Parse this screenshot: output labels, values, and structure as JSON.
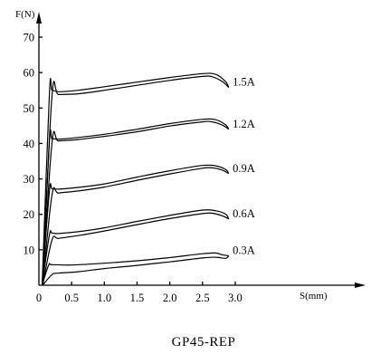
{
  "chart_data": {
    "type": "line",
    "title": "GP45-REP",
    "xlabel": "S(mm)",
    "ylabel": "F(N)",
    "xlim": [
      0,
      3.25
    ],
    "ylim": [
      0,
      73
    ],
    "x_ticks": [
      "0",
      "0.5",
      "1.0",
      "1.5",
      "2.0",
      "2.5",
      "3.0"
    ],
    "y_ticks": [
      "10",
      "20",
      "30",
      "40",
      "50",
      "60",
      "70"
    ],
    "grid": false,
    "series": [
      {
        "name": "1.5A",
        "upper": [
          [
            0.05,
            0
          ],
          [
            0.16,
            54
          ],
          [
            0.2,
            55
          ],
          [
            0.3,
            54.6
          ],
          [
            0.6,
            55
          ],
          [
            1.0,
            56
          ],
          [
            1.5,
            57.3
          ],
          [
            2.0,
            58.6
          ],
          [
            2.5,
            59.7
          ],
          [
            2.7,
            59.5
          ],
          [
            2.85,
            57.5
          ],
          [
            2.9,
            55.8
          ]
        ],
        "lower": [
          [
            0.06,
            0
          ],
          [
            0.2,
            53.5
          ],
          [
            0.3,
            53.8
          ],
          [
            0.6,
            54
          ],
          [
            1.0,
            55
          ],
          [
            1.5,
            56.4
          ],
          [
            2.0,
            57.8
          ],
          [
            2.5,
            58.9
          ],
          [
            2.65,
            58.8
          ],
          [
            2.8,
            57.5
          ],
          [
            2.9,
            55.8
          ]
        ]
      },
      {
        "name": "1.2A",
        "upper": [
          [
            0.05,
            0
          ],
          [
            0.16,
            40.6
          ],
          [
            0.2,
            41.3
          ],
          [
            0.3,
            41.2
          ],
          [
            0.6,
            41.7
          ],
          [
            1.0,
            42.6
          ],
          [
            1.5,
            44.0
          ],
          [
            2.0,
            45.6
          ],
          [
            2.5,
            46.8
          ],
          [
            2.7,
            46.7
          ],
          [
            2.85,
            45.3
          ],
          [
            2.9,
            44
          ]
        ],
        "lower": [
          [
            0.06,
            0
          ],
          [
            0.2,
            40.3
          ],
          [
            0.3,
            40.7
          ],
          [
            0.6,
            41.1
          ],
          [
            1.0,
            42
          ],
          [
            1.5,
            43.3
          ],
          [
            2.0,
            44.9
          ],
          [
            2.5,
            46.1
          ],
          [
            2.65,
            46.1
          ],
          [
            2.8,
            45.2
          ],
          [
            2.9,
            44
          ]
        ]
      },
      {
        "name": "0.9A",
        "upper": [
          [
            0.05,
            0
          ],
          [
            0.16,
            26.5
          ],
          [
            0.2,
            27.2
          ],
          [
            0.3,
            27.1
          ],
          [
            0.6,
            27.6
          ],
          [
            1.0,
            28.6
          ],
          [
            1.5,
            30.5
          ],
          [
            2.0,
            32.3
          ],
          [
            2.5,
            33.8
          ],
          [
            2.7,
            33.7
          ],
          [
            2.85,
            32.7
          ],
          [
            2.9,
            31.5
          ]
        ],
        "lower": [
          [
            0.06,
            0
          ],
          [
            0.2,
            25.5
          ],
          [
            0.3,
            26
          ],
          [
            0.6,
            26.6
          ],
          [
            1.0,
            27.7
          ],
          [
            1.5,
            29.6
          ],
          [
            2.0,
            31.4
          ],
          [
            2.5,
            33.0
          ],
          [
            2.65,
            33.1
          ],
          [
            2.8,
            32.5
          ],
          [
            2.9,
            31.5
          ]
        ]
      },
      {
        "name": "0.6A",
        "upper": [
          [
            0.05,
            0
          ],
          [
            0.16,
            14.2
          ],
          [
            0.2,
            14.7
          ],
          [
            0.3,
            14.6
          ],
          [
            0.6,
            15.1
          ],
          [
            1.0,
            16.2
          ],
          [
            1.5,
            18.0
          ],
          [
            2.0,
            19.7
          ],
          [
            2.5,
            21.2
          ],
          [
            2.7,
            21.0
          ],
          [
            2.85,
            20.1
          ],
          [
            2.9,
            18.7
          ]
        ],
        "lower": [
          [
            0.06,
            0
          ],
          [
            0.2,
            12.8
          ],
          [
            0.3,
            13.2
          ],
          [
            0.6,
            14.0
          ],
          [
            1.0,
            15.3
          ],
          [
            1.5,
            17.1
          ],
          [
            2.0,
            18.8
          ],
          [
            2.5,
            20.2
          ],
          [
            2.65,
            20.3
          ],
          [
            2.8,
            19.6
          ],
          [
            2.9,
            18.7
          ]
        ]
      },
      {
        "name": "0.3A",
        "upper": [
          [
            0.05,
            0
          ],
          [
            0.15,
            5.7
          ],
          [
            0.2,
            5.8
          ],
          [
            0.5,
            5.7
          ],
          [
            1.0,
            6.2
          ],
          [
            1.5,
            6.9
          ],
          [
            2.0,
            7.8
          ],
          [
            2.5,
            8.9
          ],
          [
            2.7,
            9.1
          ],
          [
            2.8,
            8.6
          ],
          [
            2.9,
            8.3
          ]
        ],
        "lower": [
          [
            0.06,
            0
          ],
          [
            0.2,
            3.0
          ],
          [
            0.3,
            3.4
          ],
          [
            0.6,
            3.8
          ],
          [
            1.0,
            4.7
          ],
          [
            1.5,
            5.6
          ],
          [
            2.0,
            6.6
          ],
          [
            2.5,
            7.7
          ],
          [
            2.7,
            7.9
          ],
          [
            2.85,
            7.6
          ],
          [
            2.9,
            8.3
          ]
        ]
      }
    ]
  }
}
